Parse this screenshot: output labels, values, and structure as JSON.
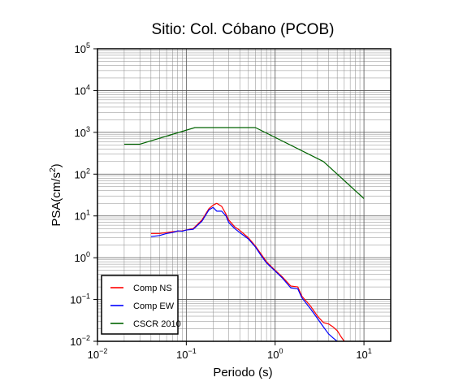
{
  "chart_data": {
    "type": "line",
    "title": "Sitio: Col. Cóbano (PCOB)",
    "xlabel": "Periodo (s)",
    "ylabel_text": "PSA(cm/s",
    "ylabel_sup": "2",
    "ylabel_close": ")",
    "x_scale": "log",
    "y_scale": "log",
    "xlim": [
      0.01,
      20
    ],
    "ylim": [
      0.01,
      100000
    ],
    "grid": true,
    "legend_placement": "bottom-left",
    "x_ticks": [
      {
        "value": 0.01,
        "base": "10",
        "exp": "−2"
      },
      {
        "value": 0.1,
        "base": "10",
        "exp": "−1"
      },
      {
        "value": 1,
        "base": "10",
        "exp": "0"
      },
      {
        "value": 10,
        "base": "10",
        "exp": "1"
      }
    ],
    "y_ticks": [
      {
        "value": 0.01,
        "base": "10",
        "exp": "−2"
      },
      {
        "value": 0.1,
        "base": "10",
        "exp": "−1"
      },
      {
        "value": 1,
        "base": "10",
        "exp": "0"
      },
      {
        "value": 10,
        "base": "10",
        "exp": "1"
      },
      {
        "value": 100,
        "base": "10",
        "exp": "2"
      },
      {
        "value": 1000,
        "base": "10",
        "exp": "3"
      },
      {
        "value": 10000,
        "base": "10",
        "exp": "4"
      },
      {
        "value": 100000,
        "base": "10",
        "exp": "5"
      }
    ],
    "series": [
      {
        "name": "Comp NS",
        "color": "#ff0000",
        "x": [
          0.04,
          0.05,
          0.06,
          0.07,
          0.08,
          0.09,
          0.1,
          0.12,
          0.15,
          0.18,
          0.2,
          0.22,
          0.25,
          0.28,
          0.3,
          0.35,
          0.4,
          0.5,
          0.6,
          0.7,
          0.8,
          1.0,
          1.2,
          1.5,
          1.8,
          2.0,
          2.5,
          3.0,
          3.5,
          4.0,
          4.5,
          5.0,
          5.5,
          6.0
        ],
        "y": [
          3.8,
          3.8,
          4.0,
          4.2,
          4.3,
          4.4,
          4.6,
          5.0,
          8.0,
          15.0,
          18.0,
          20.0,
          17.0,
          11.0,
          8.0,
          5.5,
          4.5,
          3.0,
          1.9,
          1.2,
          0.8,
          0.5,
          0.35,
          0.21,
          0.2,
          0.12,
          0.07,
          0.04,
          0.028,
          0.026,
          0.022,
          0.018,
          0.013,
          0.01
        ]
      },
      {
        "name": "Comp EW",
        "color": "#0000ff",
        "x": [
          0.04,
          0.05,
          0.06,
          0.07,
          0.08,
          0.09,
          0.1,
          0.12,
          0.15,
          0.18,
          0.2,
          0.22,
          0.25,
          0.28,
          0.3,
          0.35,
          0.4,
          0.5,
          0.6,
          0.7,
          0.8,
          1.0,
          1.2,
          1.5,
          1.8,
          2.0,
          2.5,
          3.0,
          3.5,
          4.0,
          4.5,
          5.0
        ],
        "y": [
          3.2,
          3.4,
          3.8,
          4.0,
          4.4,
          4.3,
          4.6,
          4.8,
          7.5,
          14.0,
          16.0,
          13.0,
          13.0,
          10.0,
          7.0,
          5.0,
          4.0,
          2.8,
          1.8,
          1.1,
          0.75,
          0.48,
          0.33,
          0.19,
          0.18,
          0.11,
          0.06,
          0.035,
          0.022,
          0.015,
          0.012,
          0.01
        ]
      },
      {
        "name": "CSCR 2010",
        "color": "#006400",
        "x": [
          0.02,
          0.03,
          0.125,
          0.6,
          3.5,
          10
        ],
        "y": [
          520,
          520,
          1300,
          1300,
          200,
          26
        ]
      }
    ]
  }
}
